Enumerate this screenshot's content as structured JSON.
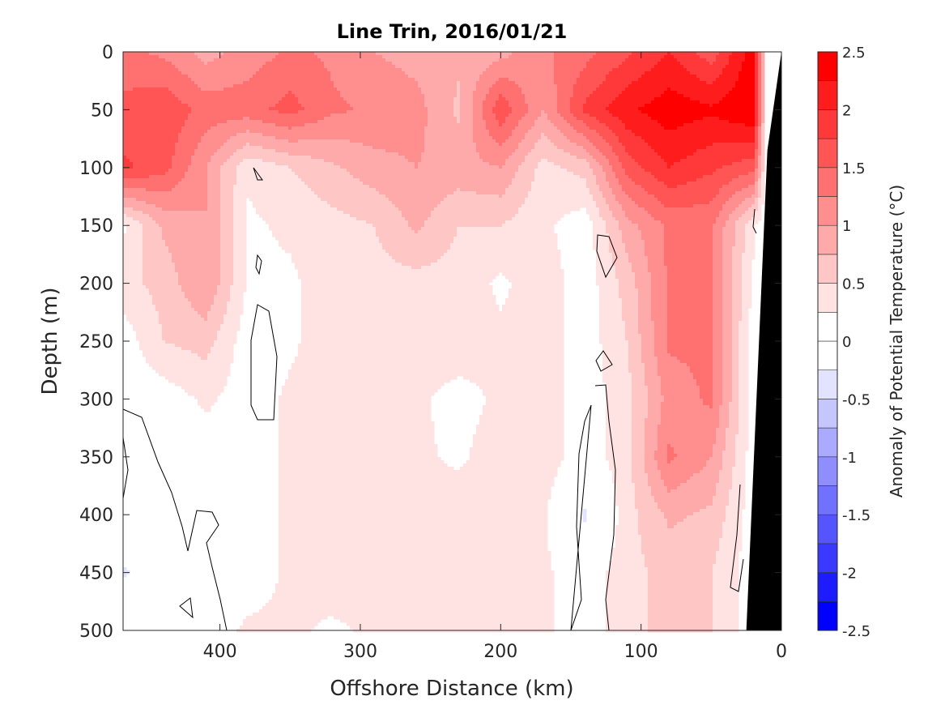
{
  "chart_data": {
    "type": "heatmap",
    "subtype": "filled-contour",
    "title": "Line Trin, 2016/01/21",
    "xlabel": "Offshore Distance (km)",
    "ylabel": "Depth (m)",
    "xlim": [
      469,
      0
    ],
    "ylim": [
      0,
      500
    ],
    "x_reversed": true,
    "y_reversed": true,
    "xticks": [
      400,
      300,
      200,
      100,
      0
    ],
    "xtick_labels": [
      "400",
      "300",
      "200",
      "100",
      "0"
    ],
    "yticks": [
      0,
      50,
      100,
      150,
      200,
      250,
      300,
      350,
      400,
      450,
      500
    ],
    "ytick_labels": [
      "0",
      "50",
      "100",
      "150",
      "200",
      "250",
      "300",
      "350",
      "400",
      "450",
      "500"
    ],
    "colorbar": {
      "label": "Anomaly of Potential Temperature (°C)",
      "range": [
        -2.5,
        2.5
      ],
      "level_step": 0.25,
      "ticks": [
        2.5,
        2,
        1.5,
        1,
        0.5,
        0,
        -0.5,
        -1,
        -1.5,
        -2,
        -2.5
      ],
      "tick_labels": [
        "2.5",
        "2",
        "1.5",
        "1",
        "0.5",
        "0",
        "-0.5",
        "-1",
        "-1.5",
        "-2",
        "-2.5"
      ],
      "positive_color": "#ff0000",
      "negative_color": "#0000ff",
      "neutral_color": "#ffffff"
    },
    "grid_x_km": [
      469,
      440,
      410,
      380,
      350,
      320,
      290,
      260,
      230,
      200,
      170,
      140,
      110,
      80,
      50,
      20,
      10
    ],
    "grid_depth_m": [
      0,
      50,
      100,
      150,
      200,
      250,
      300,
      350,
      400,
      450,
      500
    ],
    "values": [
      [
        1.3,
        1.2,
        0.9,
        1.1,
        1.3,
        1.2,
        1.0,
        0.9,
        0.8,
        0.9,
        1.2,
        1.4,
        1.7,
        2.0,
        1.6,
        2.4,
        0.0
      ],
      [
        1.6,
        1.7,
        1.4,
        1.4,
        1.6,
        1.3,
        1.2,
        1.1,
        0.7,
        1.7,
        1.0,
        1.8,
        2.2,
        2.4,
        2.3,
        2.5,
        0.0
      ],
      [
        1.8,
        1.6,
        1.0,
        0.3,
        0.5,
        0.7,
        0.9,
        1.0,
        0.9,
        1.0,
        0.4,
        0.6,
        1.6,
        2.0,
        1.8,
        1.6,
        0.0
      ],
      [
        0.2,
        0.8,
        1.0,
        0.2,
        0.3,
        0.4,
        0.5,
        0.8,
        0.5,
        0.5,
        0.3,
        0.1,
        0.9,
        1.3,
        1.3,
        0.3,
        0.0
      ],
      [
        0.4,
        0.6,
        1.0,
        0.2,
        0.2,
        0.4,
        0.4,
        0.4,
        0.4,
        0.2,
        0.4,
        0.1,
        0.6,
        1.3,
        1.3,
        0.2,
        0.0
      ],
      [
        0.1,
        0.5,
        0.6,
        0.1,
        0.2,
        0.4,
        0.4,
        0.4,
        0.4,
        0.3,
        0.4,
        0.1,
        0.5,
        1.3,
        1.3,
        0.1,
        0.0
      ],
      [
        0.1,
        0.1,
        0.3,
        0.1,
        0.3,
        0.4,
        0.4,
        0.3,
        0.15,
        0.3,
        0.4,
        0.1,
        0.4,
        1.1,
        1.3,
        0.1,
        0.0
      ],
      [
        0.1,
        0.1,
        0.1,
        0.1,
        0.3,
        0.4,
        0.4,
        0.3,
        0.2,
        0.4,
        0.4,
        0.1,
        0.4,
        1.3,
        1.0,
        0.1,
        0.0
      ],
      [
        0.0,
        0.1,
        0.1,
        0.1,
        0.3,
        0.4,
        0.4,
        0.4,
        0.4,
        0.4,
        0.3,
        -0.3,
        0.4,
        0.8,
        0.7,
        0.1,
        0.0
      ],
      [
        -0.3,
        0.1,
        0.1,
        0.1,
        0.3,
        0.4,
        0.4,
        0.4,
        0.4,
        0.4,
        0.3,
        0.1,
        0.4,
        0.6,
        0.5,
        0.1,
        0.0
      ],
      [
        0.1,
        0.1,
        0.1,
        0.3,
        0.3,
        0.2,
        0.3,
        0.4,
        0.3,
        0.4,
        0.3,
        0.1,
        0.4,
        0.6,
        0.5,
        0.1,
        0.0
      ]
    ],
    "bathymetry": [
      [
        0,
        0
      ],
      [
        10,
        85
      ],
      [
        25,
        500
      ]
    ],
    "bathymetry_color": "#000000"
  }
}
